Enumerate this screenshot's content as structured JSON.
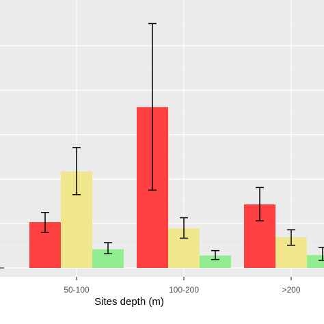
{
  "chart_data": {
    "type": "bar",
    "title": "",
    "xlabel": "Sites depth (m)",
    "ylabel": "",
    "categories": [
      "50-100",
      "100-200",
      ">200"
    ],
    "ylim": [
      0,
      5.6
    ],
    "grid": true,
    "series": [
      {
        "color": "#ff4040",
        "values": [
          1.03,
          3.62,
          1.43
        ],
        "err_low": [
          0.8,
          1.75,
          1.06
        ],
        "err_high": [
          1.25,
          5.5,
          1.81
        ]
      },
      {
        "color": "#f0e68c",
        "values": [
          2.17,
          0.89,
          0.69
        ],
        "err_low": [
          1.65,
          0.67,
          0.51
        ],
        "err_high": [
          2.71,
          1.13,
          0.86
        ]
      },
      {
        "color": "#90ee90",
        "values": [
          0.42,
          0.28,
          0.29
        ],
        "err_low": [
          0.32,
          0.19,
          0.17
        ],
        "err_high": [
          0.57,
          0.39,
          0.46
        ]
      }
    ]
  }
}
